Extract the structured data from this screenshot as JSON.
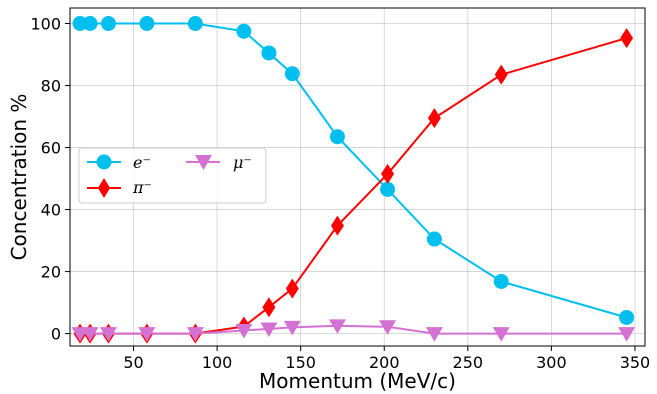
{
  "chart_data": {
    "type": "line",
    "title": "",
    "xlabel": "Momentum (MeV/c)",
    "ylabel": "Concentration %",
    "xlim": [
      12,
      356
    ],
    "ylim": [
      -4,
      105
    ],
    "xticks": [
      50,
      100,
      150,
      200,
      250,
      300,
      350
    ],
    "yticks": [
      0,
      20,
      40,
      60,
      80,
      100
    ],
    "grid": true,
    "legend_position": "center-left",
    "series": [
      {
        "name": "e⁻",
        "color": "#00bfef",
        "marker": "circle",
        "x": [
          18,
          24,
          35,
          58,
          87,
          116,
          131,
          145,
          172,
          202,
          230,
          270,
          345
        ],
        "y": [
          100,
          100,
          100,
          100,
          100,
          97.5,
          90.5,
          83.8,
          63.5,
          46.5,
          30.5,
          16.8,
          5.2
        ]
      },
      {
        "name": "π⁻",
        "color": "#ff0000",
        "marker": "diamond",
        "x": [
          18,
          24,
          35,
          58,
          87,
          116,
          131,
          145,
          172,
          202,
          230,
          270,
          345
        ],
        "y": [
          0,
          0,
          0,
          0,
          0,
          2.3,
          8.5,
          14.5,
          34.8,
          51.5,
          69.5,
          83.5,
          95.3
        ]
      },
      {
        "name": "μ⁻",
        "color": "#d472d4",
        "marker": "triangle-down",
        "x": [
          18,
          24,
          35,
          58,
          87,
          116,
          131,
          145,
          172,
          202,
          230,
          270,
          345
        ],
        "y": [
          0,
          0,
          0,
          0,
          0,
          1,
          1.5,
          2,
          2.5,
          2.2,
          0,
          0,
          0
        ]
      }
    ]
  }
}
